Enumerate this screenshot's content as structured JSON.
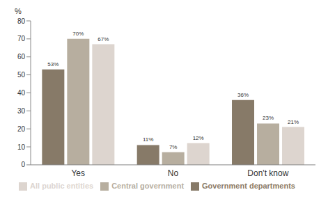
{
  "chart_data": {
    "type": "bar",
    "y_label": "%",
    "categories": [
      "Yes",
      "No",
      "Don't know"
    ],
    "series": [
      {
        "name": "Government departments",
        "color": "#877a68",
        "values": [
          53,
          11,
          36
        ],
        "value_labels": [
          "53%",
          "11%",
          "36%"
        ]
      },
      {
        "name": "Central government",
        "color": "#b7ae9f",
        "values": [
          70,
          7,
          23
        ],
        "value_labels": [
          "70%",
          "7%",
          "23%"
        ]
      },
      {
        "name": "All public entities",
        "color": "#ddd5cf",
        "values": [
          67,
          12,
          21
        ],
        "value_labels": [
          "67%",
          "12%",
          "21%"
        ]
      }
    ],
    "ylim": [
      0,
      80
    ],
    "yticks": [
      0,
      10,
      20,
      30,
      40,
      50,
      60,
      70,
      80
    ],
    "grid": false,
    "legend": "bottom",
    "data_labels": true
  }
}
